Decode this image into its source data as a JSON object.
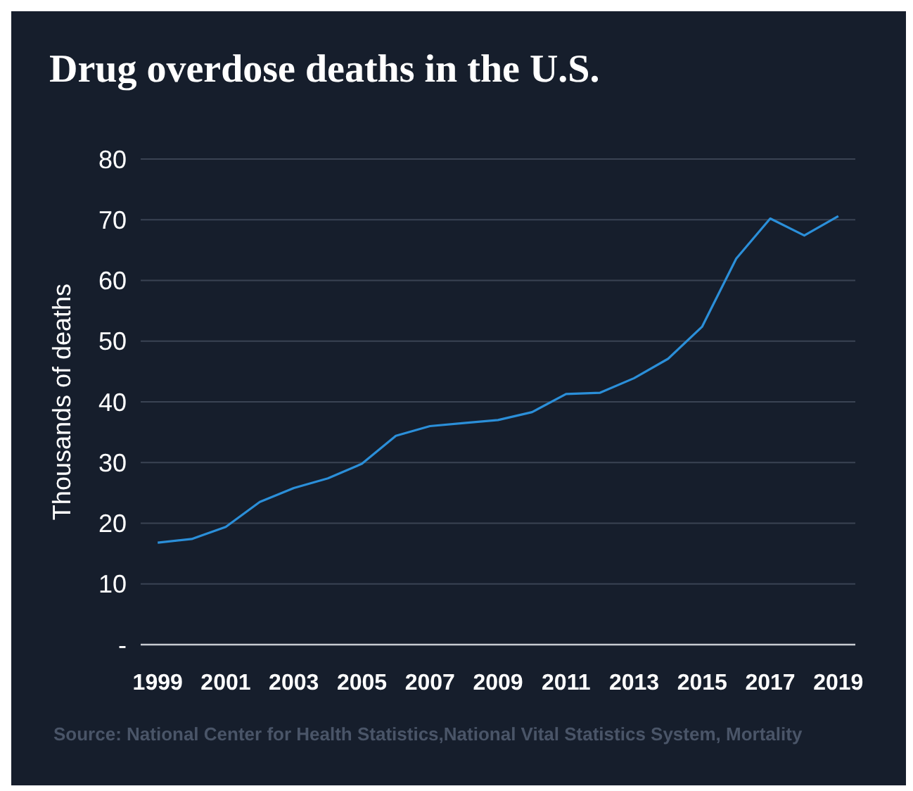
{
  "chart_data": {
    "type": "line",
    "title": "Drug overdose deaths in the U.S.",
    "ylabel": "Thousands of deaths",
    "annotations": [
      "Source: National Center for Health Statistics,National Vital Statistics System, Mortality"
    ],
    "x": [
      1999,
      2000,
      2001,
      2002,
      2003,
      2004,
      2005,
      2006,
      2007,
      2008,
      2009,
      2010,
      2011,
      2012,
      2013,
      2014,
      2015,
      2016,
      2017,
      2018,
      2019
    ],
    "series": [
      {
        "color": "#2b8fd9",
        "values": [
          16.8,
          17.4,
          19.4,
          23.5,
          25.8,
          27.4,
          29.8,
          34.4,
          36.0,
          36.5,
          37.0,
          38.3,
          41.3,
          41.5,
          43.9,
          47.1,
          52.4,
          63.6,
          70.2,
          67.4,
          70.6
        ]
      }
    ],
    "xlim": [
      1998.5,
      2019.5
    ],
    "xticks": [
      1999,
      2001,
      2003,
      2005,
      2007,
      2009,
      2011,
      2013,
      2015,
      2017,
      2019
    ],
    "ylim": [
      0,
      80
    ],
    "yticks": [
      {
        "value": 0,
        "label": "-"
      },
      10,
      20,
      30,
      40,
      50,
      60,
      70,
      80
    ],
    "grid": "y",
    "marker": "none",
    "line_style": "solid"
  }
}
